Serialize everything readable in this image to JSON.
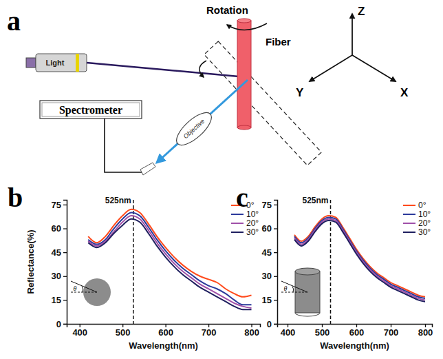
{
  "diagram": {
    "panel": "a",
    "labels": {
      "rotation": "Rotation",
      "fiber": "Fiber",
      "axis_z": "Z",
      "axis_y": "Y",
      "axis_x": "X",
      "light": "Light",
      "objective": "Objective",
      "spectrometer": "Spectrometer"
    }
  },
  "chart_data": [
    {
      "type": "line",
      "xlabel": "Wavelength(nm)",
      "ylabel": "Reflectance(%)",
      "x": [
        420,
        440,
        460,
        480,
        500,
        520,
        540,
        560,
        580,
        600,
        620,
        640,
        660,
        680,
        700,
        720,
        740,
        760,
        780,
        800
      ],
      "series": [
        {
          "name": "0°",
          "color": "#ff4a1c",
          "values": [
            55,
            51,
            55,
            62,
            68,
            72,
            70,
            63,
            55,
            48,
            42,
            37,
            33,
            30,
            28,
            26,
            22,
            19,
            17,
            18
          ]
        },
        {
          "name": "10°",
          "color": "#2b3a9b",
          "values": [
            53,
            50,
            53,
            60,
            66,
            70,
            68,
            61,
            53,
            46,
            40,
            35,
            31,
            27,
            24,
            22,
            19,
            15,
            12,
            12
          ]
        },
        {
          "name": "20°",
          "color": "#a050a8",
          "values": [
            52,
            49,
            52,
            58,
            64,
            68,
            66,
            59,
            51,
            44,
            38,
            33,
            29,
            25,
            22,
            19,
            16,
            13,
            11,
            10
          ]
        },
        {
          "name": "30°",
          "color": "#1f1f5f",
          "values": [
            51,
            48,
            51,
            57,
            62,
            66,
            64,
            57,
            49,
            42,
            36,
            31,
            27,
            23,
            20,
            17,
            14,
            11,
            9,
            9
          ]
        }
      ],
      "xlim": [
        370,
        820
      ],
      "xticks": [
        400,
        500,
        600,
        700,
        800
      ],
      "ylim": [
        0,
        78
      ],
      "yticks": [
        0,
        15,
        30,
        45,
        60,
        75
      ],
      "legend": "upper right",
      "annotations": [
        {
          "kind": "panel",
          "text": "b"
        },
        {
          "kind": "vline",
          "x": 525,
          "text": "525nm"
        },
        {
          "kind": "inset",
          "shape": "sphere",
          "text": "θ"
        }
      ]
    },
    {
      "type": "line",
      "xlabel": "Wavelength(nm)",
      "x": [
        420,
        440,
        460,
        480,
        500,
        520,
        540,
        560,
        580,
        600,
        620,
        640,
        660,
        680,
        700,
        720,
        740,
        760,
        780,
        800
      ],
      "series": [
        {
          "name": "0°",
          "color": "#ff4a1c",
          "values": [
            56,
            52,
            55,
            61,
            66,
            68,
            67,
            61,
            54,
            47,
            41,
            36,
            32,
            29,
            26,
            24,
            22,
            20,
            18,
            17
          ]
        },
        {
          "name": "10°",
          "color": "#2b3a9b",
          "values": [
            55,
            51,
            54,
            60,
            65,
            67,
            66,
            60,
            53,
            46,
            40,
            35,
            31,
            28,
            25,
            23,
            21,
            19,
            17,
            16
          ]
        },
        {
          "name": "20°",
          "color": "#a050a8",
          "values": [
            54,
            50,
            53,
            59,
            64,
            66,
            65,
            59,
            52,
            45,
            39,
            34,
            30,
            27,
            24,
            22,
            20,
            18,
            16,
            15
          ]
        },
        {
          "name": "30°",
          "color": "#1f1f5f",
          "values": [
            53,
            49,
            52,
            58,
            63,
            65,
            64,
            58,
            51,
            44,
            38,
            33,
            29,
            26,
            23,
            21,
            19,
            17,
            15,
            14
          ]
        }
      ],
      "xlim": [
        370,
        820
      ],
      "xticks": [
        400,
        500,
        600,
        700,
        800
      ],
      "ylim": [
        0,
        78
      ],
      "yticks": [
        0,
        15,
        30,
        45,
        60,
        75
      ],
      "legend": "upper right",
      "annotations": [
        {
          "kind": "panel",
          "text": "c"
        },
        {
          "kind": "vline",
          "x": 525,
          "text": "525nm"
        },
        {
          "kind": "inset",
          "shape": "cylinder",
          "text": "θ"
        }
      ]
    }
  ]
}
